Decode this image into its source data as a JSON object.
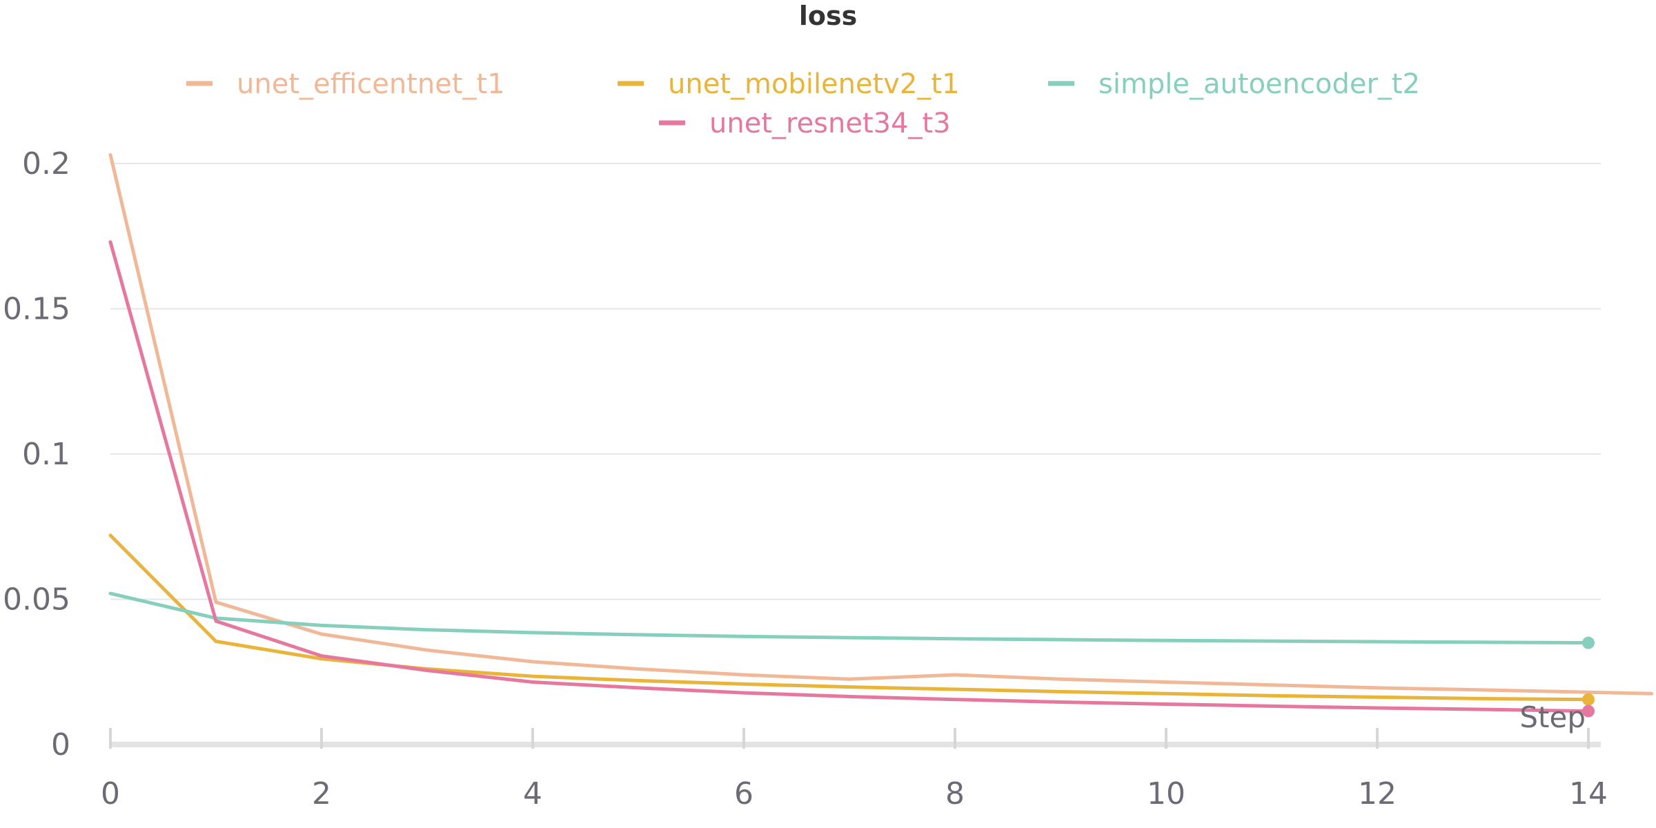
{
  "chart_data": {
    "type": "line",
    "title": "loss",
    "xlabel": "Step",
    "ylabel": "",
    "xlim": [
      0,
      14
    ],
    "ylim": [
      0,
      0.2
    ],
    "x_ticks": [
      "0",
      "2",
      "4",
      "6",
      "8",
      "10",
      "12",
      "14"
    ],
    "y_ticks": [
      "0",
      "0.05",
      "0.1",
      "0.15",
      "0.2"
    ],
    "grid": true,
    "legend_position": "top",
    "series": [
      {
        "name": "unet_efficentnet_t1",
        "color": "#f0b896",
        "x": [
          0,
          1,
          2,
          3,
          4,
          5,
          6,
          7,
          8,
          9,
          10,
          11,
          12,
          13,
          14,
          14.6
        ],
        "y": [
          0.203,
          0.049,
          0.038,
          0.0325,
          0.0285,
          0.026,
          0.024,
          0.0225,
          0.024,
          0.0225,
          0.0215,
          0.0205,
          0.0195,
          0.0188,
          0.018,
          0.0175
        ],
        "end_marker": false
      },
      {
        "name": "unet_mobilenetv2_t1",
        "color": "#e9b43a",
        "x": [
          0,
          1,
          2,
          3,
          4,
          5,
          6,
          7,
          8,
          9,
          10,
          11,
          12,
          13,
          14
        ],
        "y": [
          0.072,
          0.0355,
          0.0295,
          0.026,
          0.0235,
          0.022,
          0.0208,
          0.0198,
          0.019,
          0.0182,
          0.0175,
          0.0168,
          0.0163,
          0.0158,
          0.0155
        ],
        "end_marker": true
      },
      {
        "name": "simple_autoencoder_t2",
        "color": "#86cfbd",
        "x": [
          0,
          1,
          2,
          3,
          4,
          5,
          6,
          7,
          8,
          9,
          10,
          11,
          12,
          13,
          14
        ],
        "y": [
          0.052,
          0.0435,
          0.041,
          0.0395,
          0.0385,
          0.0378,
          0.0372,
          0.0368,
          0.0364,
          0.0361,
          0.0358,
          0.0356,
          0.0354,
          0.0352,
          0.035
        ],
        "end_marker": true
      },
      {
        "name": "unet_resnet34_t3",
        "color": "#e678a0",
        "x": [
          0,
          1,
          2,
          3,
          4,
          5,
          6,
          7,
          8,
          9,
          10,
          11,
          12,
          13,
          14
        ],
        "y": [
          0.173,
          0.0425,
          0.0305,
          0.0255,
          0.0215,
          0.0195,
          0.0178,
          0.0165,
          0.0155,
          0.0146,
          0.0139,
          0.0132,
          0.0126,
          0.0121,
          0.0115
        ],
        "end_marker": true
      }
    ]
  }
}
